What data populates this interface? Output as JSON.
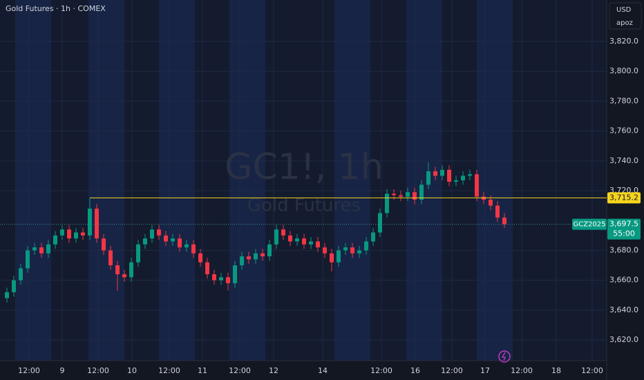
{
  "chart_data": {
    "type": "candlestick",
    "title": "Gold Futures · 1h · COMEX",
    "currency": "USD",
    "user": "apoz",
    "watermark": "GC1!, 1h",
    "watermark_subtitle": "Gold Futures",
    "symbol_tag": "GCZ2025",
    "countdown": "55:00",
    "up_color": "#089981",
    "down_color": "#f23645",
    "x": [
      1,
      2,
      3,
      4,
      5,
      6,
      7,
      8,
      9,
      10,
      11,
      12,
      13,
      14,
      15,
      16,
      17,
      18,
      19,
      20,
      21,
      22,
      23,
      24,
      25,
      26,
      27,
      28,
      29,
      30,
      31,
      32,
      33,
      34,
      35,
      36,
      37,
      38,
      39,
      40,
      41,
      42,
      43,
      44,
      45,
      46,
      47,
      48,
      49,
      50,
      51,
      52,
      53,
      54,
      55,
      56,
      57,
      58,
      59,
      60,
      61,
      62,
      63,
      64,
      65,
      66,
      67,
      68,
      69,
      70,
      71,
      72,
      73
    ],
    "open": [
      3648,
      3652,
      3660,
      3668,
      3680,
      3682,
      3678,
      3684,
      3690,
      3694,
      3688,
      3692,
      3690,
      3708,
      3688,
      3680,
      3670,
      3664,
      3662,
      3672,
      3684,
      3688,
      3694,
      3690,
      3686,
      3688,
      3682,
      3684,
      3678,
      3672,
      3664,
      3660,
      3662,
      3658,
      3670,
      3676,
      3674,
      3678,
      3676,
      3684,
      3694,
      3690,
      3686,
      3688,
      3684,
      3686,
      3682,
      3678,
      3672,
      3680,
      3682,
      3678,
      3680,
      3686,
      3692,
      3705,
      3718,
      3717,
      3716,
      3719,
      3714,
      3724,
      3733,
      3730,
      3734,
      3726,
      3727,
      3730,
      3731,
      3716,
      3714,
      3710,
      3702
    ],
    "high": [
      3655,
      3663,
      3671,
      3683,
      3685,
      3685,
      3687,
      3693,
      3697,
      3697,
      3695,
      3695,
      3715.2,
      3711,
      3691,
      3683,
      3673,
      3667,
      3675,
      3687,
      3691,
      3697,
      3697,
      3693,
      3691,
      3691,
      3687,
      3687,
      3681,
      3675,
      3667,
      3665,
      3665,
      3673,
      3679,
      3679,
      3681,
      3681,
      3687,
      3697,
      3697,
      3693,
      3691,
      3691,
      3689,
      3689,
      3685,
      3681,
      3683,
      3685,
      3685,
      3683,
      3689,
      3695,
      3708,
      3721,
      3721,
      3720,
      3722,
      3722,
      3727,
      3739,
      3736,
      3737,
      3737,
      3730,
      3733,
      3734,
      3734,
      3719,
      3717,
      3713,
      3705
    ],
    "low": [
      3645,
      3649,
      3657,
      3665,
      3677,
      3675,
      3675,
      3681,
      3687,
      3685,
      3685,
      3687,
      3687,
      3685,
      3677,
      3667,
      3653,
      3659,
      3659,
      3669,
      3681,
      3685,
      3687,
      3683,
      3683,
      3679,
      3679,
      3675,
      3669,
      3661,
      3657,
      3657,
      3653,
      3655,
      3667,
      3671,
      3671,
      3673,
      3673,
      3681,
      3687,
      3683,
      3683,
      3681,
      3681,
      3679,
      3675,
      3666,
      3669,
      3677,
      3675,
      3675,
      3677,
      3683,
      3689,
      3702,
      3714,
      3713,
      3713,
      3711,
      3711,
      3721,
      3727,
      3727,
      3723,
      3723,
      3724,
      3727,
      3713,
      3711,
      3707,
      3699,
      3695
    ],
    "close": [
      3652,
      3660,
      3668,
      3680,
      3682,
      3678,
      3684,
      3690,
      3694,
      3688,
      3692,
      3690,
      3708,
      3688,
      3680,
      3670,
      3664,
      3662,
      3672,
      3684,
      3688,
      3694,
      3690,
      3686,
      3688,
      3682,
      3684,
      3678,
      3672,
      3664,
      3660,
      3662,
      3658,
      3670,
      3676,
      3674,
      3678,
      3676,
      3684,
      3694,
      3690,
      3686,
      3688,
      3684,
      3686,
      3682,
      3678,
      3672,
      3680,
      3682,
      3678,
      3680,
      3686,
      3692,
      3705,
      3718,
      3717,
      3716,
      3719,
      3714,
      3724,
      3733,
      3730,
      3734,
      3726,
      3727,
      3730,
      3731,
      3716,
      3714,
      3710,
      3702,
      3697.5
    ],
    "level": {
      "value": 3715.2,
      "label": "3,715.2"
    },
    "last_price": {
      "value": 3697.5,
      "label": "3,697.5"
    },
    "xlim": [
      0,
      88
    ],
    "xticks": [
      {
        "value": 4.2,
        "label": "12:00"
      },
      {
        "value": 9,
        "label": "9"
      },
      {
        "value": 14.2,
        "label": "12:00"
      },
      {
        "value": 19.1,
        "label": "10"
      },
      {
        "value": 24.5,
        "label": "12:00"
      },
      {
        "value": 29.3,
        "label": "11"
      },
      {
        "value": 34.7,
        "label": "12:00"
      },
      {
        "value": 39.6,
        "label": "12"
      },
      {
        "value": 46.7,
        "label": "14"
      },
      {
        "value": 55.2,
        "label": "12:00"
      },
      {
        "value": 60.1,
        "label": "16"
      },
      {
        "value": 65.4,
        "label": "12:00"
      },
      {
        "value": 70.2,
        "label": "17"
      },
      {
        "value": 75.5,
        "label": "12:00"
      },
      {
        "value": 80.5,
        "label": "18"
      },
      {
        "value": 85.7,
        "label": "12:00"
      }
    ],
    "ylim": [
      3606.1,
      3847.8
    ],
    "yticks": [
      {
        "value": 3620,
        "label": "3,620.0"
      },
      {
        "value": 3640,
        "label": "3,640.0"
      },
      {
        "value": 3660,
        "label": "3,660.0"
      },
      {
        "value": 3680,
        "label": "3,680.0"
      },
      {
        "value": 3720,
        "label": "3,720.0"
      },
      {
        "value": 3740,
        "label": "3,740.0"
      },
      {
        "value": 3760,
        "label": "3,760.0"
      },
      {
        "value": 3780,
        "label": "3,780.0"
      },
      {
        "value": 3800,
        "label": "3,800.0"
      },
      {
        "value": 3820,
        "label": "3,820.0"
      }
    ],
    "grid": true
  }
}
